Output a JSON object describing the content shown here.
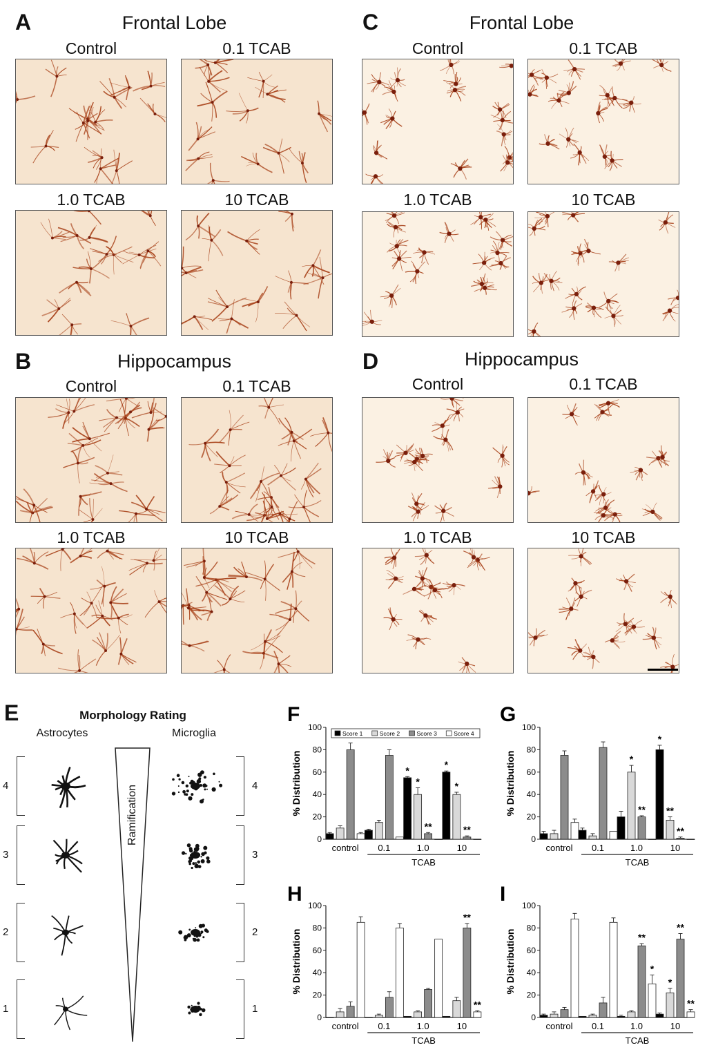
{
  "panels": {
    "A": {
      "letter": "A",
      "title": "Frontal Lobe",
      "labels": [
        "Control",
        "0.1 TCAB",
        "1.0 TCAB",
        "10 TCAB"
      ]
    },
    "B": {
      "letter": "B",
      "title": "Hippocampus",
      "labels": [
        "Control",
        "0.1 TCAB",
        "1.0 TCAB",
        "10 TCAB"
      ]
    },
    "C": {
      "letter": "C",
      "title": "Frontal Lobe",
      "labels": [
        "Control",
        "0.1 TCAB",
        "1.0 TCAB",
        "10 TCAB"
      ]
    },
    "D": {
      "letter": "D",
      "title": "Hippocampus",
      "labels": [
        "Control",
        "0.1 TCAB",
        "1.0 TCAB",
        "10 TCAB"
      ]
    }
  },
  "panelE": {
    "letter": "E",
    "title": "Morphology Rating",
    "left_label": "Astrocytes",
    "right_label": "Microglia",
    "axis_label": "Ramification",
    "scores": [
      "4",
      "3",
      "2",
      "1"
    ]
  },
  "colors": {
    "stain": "#a8421a",
    "stain_dark": "#7a1f0c",
    "bg": "#f6e4cf",
    "bg_light": "#fbf1e3"
  },
  "chart_data": [
    {
      "letter": "F",
      "type": "bar",
      "ylabel": "% Distribution",
      "ylim": [
        0,
        100
      ],
      "yticks": [
        0,
        20,
        40,
        60,
        80,
        100
      ],
      "categories": [
        "control",
        "0.1",
        "1.0",
        "10"
      ],
      "group_label": "TCAB",
      "legend": [
        "Score 1",
        "Score 2",
        "Score 3",
        "Score 4"
      ],
      "series": [
        {
          "name": "Score 1",
          "color": "#000000",
          "values": [
            5,
            8,
            55,
            60
          ],
          "errors": [
            1,
            1,
            1,
            1
          ],
          "marks": [
            "",
            "",
            "*",
            "*"
          ]
        },
        {
          "name": "Score 2",
          "color": "#d9d9d9",
          "values": [
            10,
            15,
            40,
            40
          ],
          "errors": [
            2,
            2,
            6,
            2
          ],
          "marks": [
            "",
            "",
            "*",
            "*"
          ]
        },
        {
          "name": "Score 3",
          "color": "#8c8c8c",
          "values": [
            80,
            75,
            5,
            2
          ],
          "errors": [
            6,
            5,
            1,
            1
          ],
          "marks": [
            "",
            "",
            "**",
            "**"
          ]
        },
        {
          "name": "Score 4",
          "color": "#ffffff",
          "values": [
            5,
            2,
            0,
            0
          ],
          "errors": [
            1,
            0,
            0,
            0
          ],
          "marks": [
            "",
            "",
            "",
            ""
          ]
        }
      ]
    },
    {
      "letter": "G",
      "type": "bar",
      "ylabel": "% Distribution",
      "ylim": [
        0,
        100
      ],
      "yticks": [
        0,
        20,
        40,
        60,
        80,
        100
      ],
      "categories": [
        "control",
        "0.1",
        "1.0",
        "10"
      ],
      "group_label": "TCAB",
      "series": [
        {
          "name": "Score 1",
          "color": "#000000",
          "values": [
            5,
            8,
            20,
            80
          ],
          "errors": [
            2,
            2,
            5,
            4
          ],
          "marks": [
            "",
            "",
            "",
            "*"
          ]
        },
        {
          "name": "Score 2",
          "color": "#d9d9d9",
          "values": [
            5,
            3,
            60,
            17
          ],
          "errors": [
            3,
            2,
            6,
            3
          ],
          "marks": [
            "",
            "",
            "*",
            "**"
          ]
        },
        {
          "name": "Score 3",
          "color": "#8c8c8c",
          "values": [
            75,
            82,
            20,
            1
          ],
          "errors": [
            4,
            5,
            1,
            1
          ],
          "marks": [
            "",
            "",
            "**",
            "**"
          ]
        },
        {
          "name": "Score 4",
          "color": "#ffffff",
          "values": [
            15,
            7,
            0,
            0
          ],
          "errors": [
            3,
            0,
            0,
            0
          ],
          "marks": [
            "",
            "",
            "",
            ""
          ]
        }
      ]
    },
    {
      "letter": "H",
      "type": "bar",
      "ylabel": "% Distribution",
      "ylim": [
        0,
        100
      ],
      "yticks": [
        0,
        20,
        40,
        60,
        80,
        100
      ],
      "categories": [
        "control",
        "0.1",
        "1.0",
        "10"
      ],
      "group_label": "TCAB",
      "series": [
        {
          "name": "Score 1",
          "color": "#000000",
          "values": [
            0,
            0,
            1,
            1
          ],
          "errors": [
            0,
            0,
            0,
            0
          ],
          "marks": [
            "",
            "",
            "",
            ""
          ]
        },
        {
          "name": "Score 2",
          "color": "#d9d9d9",
          "values": [
            5,
            2,
            5,
            15
          ],
          "errors": [
            3,
            1,
            1,
            3
          ],
          "marks": [
            "",
            "",
            "",
            ""
          ]
        },
        {
          "name": "Score 3",
          "color": "#8c8c8c",
          "values": [
            10,
            18,
            25,
            80
          ],
          "errors": [
            4,
            5,
            1,
            4
          ],
          "marks": [
            "",
            "",
            "",
            "**"
          ]
        },
        {
          "name": "Score 4",
          "color": "#ffffff",
          "values": [
            85,
            80,
            70,
            5
          ],
          "errors": [
            5,
            4,
            0,
            1
          ],
          "marks": [
            "",
            "",
            "",
            "**"
          ]
        }
      ]
    },
    {
      "letter": "I",
      "type": "bar",
      "ylabel": "% Distribution",
      "ylim": [
        0,
        100
      ],
      "yticks": [
        0,
        20,
        40,
        60,
        80,
        100
      ],
      "categories": [
        "control",
        "0.1",
        "1.0",
        "10"
      ],
      "group_label": "TCAB",
      "series": [
        {
          "name": "Score 1",
          "color": "#000000",
          "values": [
            2,
            1,
            1,
            3
          ],
          "errors": [
            1,
            0,
            1,
            1
          ],
          "marks": [
            "",
            "",
            "",
            ""
          ]
        },
        {
          "name": "Score 2",
          "color": "#d9d9d9",
          "values": [
            3,
            2,
            5,
            22
          ],
          "errors": [
            2,
            1,
            1,
            4
          ],
          "marks": [
            "",
            "",
            "",
            "*"
          ]
        },
        {
          "name": "Score 3",
          "color": "#8c8c8c",
          "values": [
            7,
            13,
            64,
            70
          ],
          "errors": [
            2,
            5,
            2,
            5
          ],
          "marks": [
            "",
            "",
            "**",
            "**"
          ]
        },
        {
          "name": "Score 4",
          "color": "#ffffff",
          "values": [
            88,
            85,
            30,
            5
          ],
          "errors": [
            5,
            4,
            8,
            2
          ],
          "marks": [
            "",
            "",
            "*",
            "**"
          ]
        }
      ]
    }
  ]
}
